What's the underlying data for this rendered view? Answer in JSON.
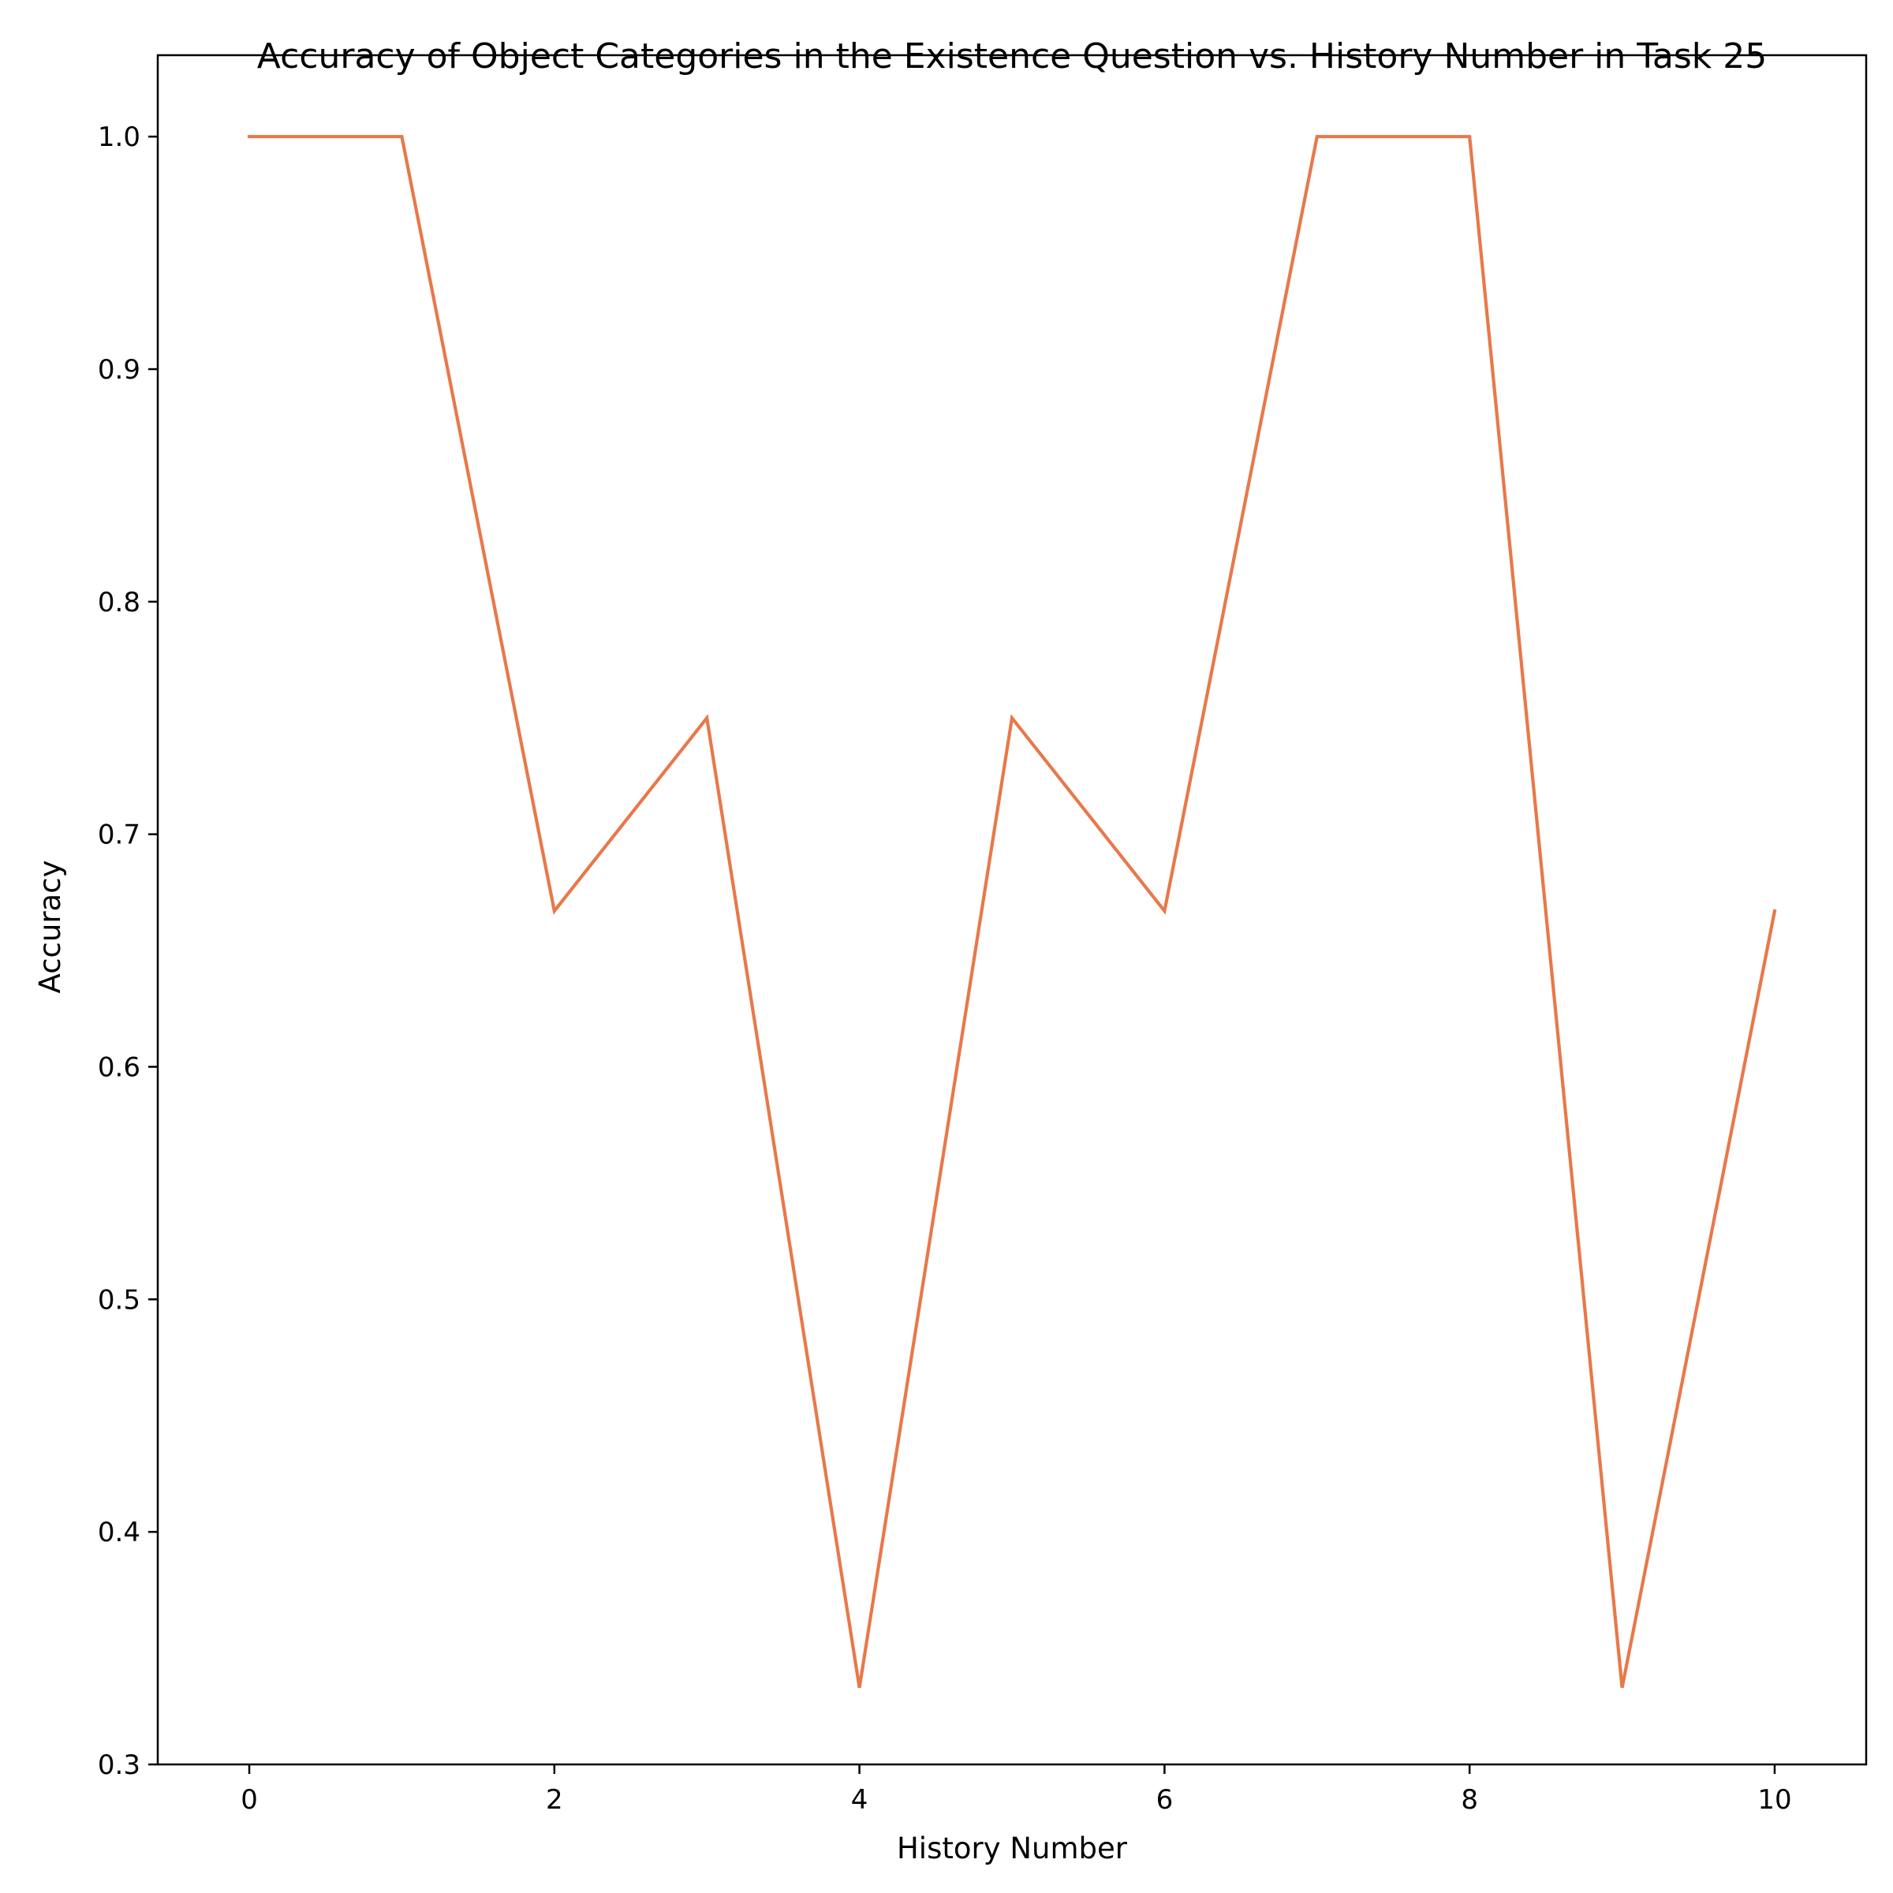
{
  "chart_data": {
    "type": "line",
    "title": "Accuracy of Object Categories in the Existence Question vs. History Number in Task 25",
    "xlabel": "History Number",
    "ylabel": "Accuracy",
    "xlim": [
      -0.6,
      10.6
    ],
    "ylim": [
      0.3,
      1.035
    ],
    "x_ticks": [
      "0",
      "2",
      "4",
      "6",
      "8",
      "10"
    ],
    "y_ticks": [
      "0.3",
      "0.4",
      "0.5",
      "0.6",
      "0.7",
      "0.8",
      "0.9",
      "1.0"
    ],
    "grid": false,
    "series": [
      {
        "color": "#e8784a",
        "x": [
          0,
          1,
          2,
          3,
          4,
          5,
          6,
          7,
          8,
          9,
          10
        ],
        "y": [
          1.0,
          1.0,
          0.667,
          0.75,
          0.333,
          0.75,
          0.667,
          1.0,
          1.0,
          0.333,
          0.667
        ]
      }
    ]
  }
}
